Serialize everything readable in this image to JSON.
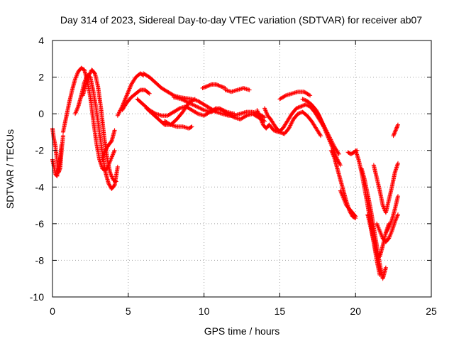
{
  "chart_data": {
    "type": "scatter",
    "title": "Day 314 of 2023, Sidereal Day-to-day VTEC variation (SDTVAR) for receiver ab07",
    "xlabel": "GPS time / hours",
    "ylabel": "SDTVAR / TECUs",
    "xlim": [
      0,
      25
    ],
    "ylim": [
      -10,
      4
    ],
    "xticks": [
      0,
      5,
      10,
      15,
      20,
      25
    ],
    "yticks": [
      -10,
      -8,
      -6,
      -4,
      -2,
      0,
      2,
      4
    ],
    "grid": true,
    "marker": "+",
    "series": [
      {
        "name": "SDTVAR",
        "color": "#ff0000",
        "segments": [
          {
            "x": [
              0.0,
              0.1,
              0.2,
              0.3,
              0.4,
              0.5,
              0.6,
              0.7
            ],
            "y": [
              -0.8,
              -1.4,
              -1.8,
              -2.6,
              -3.2,
              -3.0,
              -2.0,
              -1.2
            ]
          },
          {
            "x": [
              0.0,
              0.1,
              0.2,
              0.3,
              0.4,
              0.5,
              0.6
            ],
            "y": [
              -2.5,
              -2.9,
              -3.3,
              -3.4,
              -3.0,
              -2.5,
              -1.7
            ]
          },
          {
            "x": [
              0.7,
              0.9,
              1.1,
              1.3,
              1.5,
              1.7,
              1.9,
              2.1,
              2.3,
              2.5,
              2.7,
              2.9,
              3.1,
              3.3,
              3.5,
              3.7,
              3.9,
              4.1
            ],
            "y": [
              -1.0,
              -0.2,
              0.6,
              1.3,
              1.9,
              2.3,
              2.5,
              2.4,
              1.8,
              0.9,
              -0.4,
              -1.6,
              -2.5,
              -3.0,
              -3.1,
              -2.8,
              -2.4,
              -2.0
            ]
          },
          {
            "x": [
              1.5,
              1.7,
              1.9,
              2.1,
              2.3,
              2.5,
              2.7,
              2.9,
              3.1,
              3.3,
              3.5,
              3.7,
              3.9,
              4.1,
              4.3
            ],
            "y": [
              0.0,
              0.4,
              1.0,
              1.7,
              2.1,
              2.0,
              1.2,
              0.2,
              -1.0,
              -2.2,
              -3.2,
              -3.8,
              -4.1,
              -3.9,
              -2.9
            ]
          },
          {
            "x": [
              2.0,
              2.2,
              2.4,
              2.6,
              2.8,
              3.0,
              3.2,
              3.4,
              3.6,
              3.8,
              4.0,
              4.2
            ],
            "y": [
              1.0,
              1.6,
              2.1,
              2.4,
              2.2,
              1.5,
              0.3,
              -1.2,
              -2.4,
              -3.2,
              -3.6,
              -3.7
            ]
          },
          {
            "x": [
              3.3,
              3.5,
              3.7,
              3.9,
              4.1
            ],
            "y": [
              -2.5,
              -2.0,
              -1.7,
              -1.5,
              -0.9
            ]
          },
          {
            "x": [
              4.3,
              4.6,
              4.9,
              5.2,
              5.5,
              5.8,
              6.0
            ],
            "y": [
              -0.1,
              0.4,
              1.0,
              1.6,
              2.0,
              2.2,
              2.1
            ]
          },
          {
            "x": [
              4.6,
              4.9,
              5.2,
              5.5,
              5.8,
              6.1,
              6.4
            ],
            "y": [
              0.2,
              0.6,
              0.9,
              1.1,
              1.3,
              1.3,
              1.1
            ]
          },
          {
            "x": [
              6.0,
              6.4,
              6.8,
              7.2,
              7.6,
              8.0,
              8.4,
              8.8,
              9.2,
              9.6,
              10.0,
              10.4,
              10.8,
              11.2,
              11.6,
              12.0,
              12.4,
              12.8,
              13.2,
              13.6,
              14.0
            ],
            "y": [
              2.2,
              2.0,
              1.7,
              1.4,
              1.2,
              1.0,
              0.9,
              0.85,
              0.8,
              0.7,
              0.5,
              0.3,
              0.1,
              0.0,
              -0.1,
              -0.1,
              0.0,
              0.1,
              0.1,
              0.0,
              -0.2
            ]
          },
          {
            "x": [
              5.6,
              6.0,
              6.4,
              6.8,
              7.2,
              7.6,
              8.0,
              8.4,
              8.8,
              9.2,
              9.6,
              10.0,
              10.4,
              10.8,
              11.2,
              11.6,
              12.0,
              12.4,
              12.8,
              13.2,
              13.6,
              14.0
            ],
            "y": [
              0.8,
              0.5,
              0.2,
              0.0,
              -0.1,
              -0.1,
              0.1,
              0.3,
              0.4,
              0.2,
              0.0,
              -0.1,
              0.1,
              0.3,
              0.2,
              0.0,
              -0.2,
              -0.3,
              -0.1,
              0.0,
              -0.2,
              -0.4
            ]
          },
          {
            "x": [
              6.2,
              6.6,
              7.0,
              7.4,
              7.8,
              8.2,
              8.6,
              9.0,
              9.4
            ],
            "y": [
              0.3,
              0.0,
              -0.3,
              -0.6,
              -0.6,
              -0.3,
              0.1,
              0.6,
              0.8
            ]
          },
          {
            "x": [
              7.4,
              7.8,
              8.2,
              8.6,
              9.0,
              9.2
            ],
            "y": [
              -0.4,
              -0.6,
              -0.7,
              -0.7,
              -0.8,
              -0.7
            ]
          },
          {
            "x": [
              8.0,
              8.5,
              9.0,
              9.5,
              10.0,
              10.5,
              11.0,
              11.5,
              12.0
            ],
            "y": [
              0.9,
              0.8,
              0.6,
              0.4,
              0.2,
              0.1,
              0.3,
              0.1,
              0.0
            ]
          },
          {
            "x": [
              9.9,
              10.2,
              10.5,
              10.8,
              11.1,
              11.4
            ],
            "y": [
              1.4,
              1.5,
              1.6,
              1.6,
              1.5,
              1.4
            ]
          },
          {
            "x": [
              11.4,
              11.8,
              12.2,
              12.6,
              13.0
            ],
            "y": [
              1.3,
              1.2,
              1.3,
              1.4,
              1.3
            ]
          },
          {
            "x": [
              13.5,
              13.7,
              13.9,
              14.1,
              14.3
            ],
            "y": [
              0.2,
              -0.2,
              -0.6,
              -0.8,
              -0.6
            ]
          },
          {
            "x": [
              14.0,
              14.2,
              14.4
            ],
            "y": [
              0.3,
              -0.1,
              -0.3
            ]
          },
          {
            "x": [
              14.3,
              14.6,
              14.9,
              15.2,
              15.5,
              15.8,
              16.1,
              16.4,
              16.7,
              17.0,
              17.3,
              17.6,
              17.9
            ],
            "y": [
              -0.6,
              -0.9,
              -1.0,
              -0.8,
              -0.4,
              0.0,
              0.3,
              0.4,
              0.5,
              0.4,
              0.1,
              -0.3,
              -0.7
            ]
          },
          {
            "x": [
              14.4,
              14.7,
              15.0,
              15.3,
              15.6,
              15.9,
              16.2,
              16.5,
              16.8,
              17.1,
              17.4,
              17.7
            ],
            "y": [
              -0.3,
              -0.7,
              -1.0,
              -1.1,
              -0.8,
              -0.3,
              0.0,
              0.1,
              -0.1,
              -0.4,
              -0.8,
              -1.2
            ]
          },
          {
            "x": [
              15.0,
              15.4,
              15.8,
              16.2,
              16.6,
              17.0
            ],
            "y": [
              0.8,
              1.0,
              1.1,
              1.2,
              1.2,
              1.0
            ]
          },
          {
            "x": [
              16.5,
              16.8,
              17.1,
              17.4,
              17.7,
              18.0,
              18.3,
              18.6,
              18.9
            ],
            "y": [
              0.8,
              0.7,
              0.5,
              0.2,
              -0.3,
              -0.8,
              -1.3,
              -1.8,
              -2.2
            ]
          },
          {
            "x": [
              17.4,
              17.6,
              17.8,
              18.0,
              18.2,
              18.4,
              18.6,
              18.8,
              19.0
            ],
            "y": [
              0.2,
              -0.1,
              -0.5,
              -0.9,
              -1.3,
              -1.7,
              -2.1,
              -2.5,
              -2.8
            ]
          },
          {
            "x": [
              18.4,
              18.6,
              18.8,
              19.0,
              19.2,
              19.4,
              19.6,
              19.8,
              20.0
            ],
            "y": [
              -2.0,
              -2.4,
              -3.0,
              -3.6,
              -4.2,
              -4.8,
              -5.3,
              -5.6,
              -5.7
            ]
          },
          {
            "x": [
              19.0,
              19.2,
              19.4,
              19.6,
              19.8,
              20.0
            ],
            "y": [
              -4.2,
              -4.6,
              -5.0,
              -5.2,
              -5.4,
              -5.6
            ]
          },
          {
            "x": [
              19.5,
              19.7,
              19.9,
              20.1
            ],
            "y": [
              -2.1,
              -2.2,
              -2.1,
              -2.0
            ]
          },
          {
            "x": [
              20.0,
              20.2,
              20.4,
              20.6,
              20.8,
              21.0,
              21.2,
              21.4,
              21.6
            ],
            "y": [
              -2.0,
              -2.5,
              -3.2,
              -4.1,
              -5.0,
              -6.0,
              -7.0,
              -8.0,
              -8.8
            ]
          },
          {
            "x": [
              20.4,
              20.6,
              20.8,
              21.0,
              21.2,
              21.4,
              21.6,
              21.8,
              22.0
            ],
            "y": [
              -3.0,
              -3.6,
              -4.4,
              -5.2,
              -6.2,
              -7.2,
              -8.2,
              -9.0,
              -8.4
            ]
          },
          {
            "x": [
              20.8,
              21.0,
              21.2,
              21.4,
              21.6,
              21.8,
              22.0,
              22.2
            ],
            "y": [
              -5.5,
              -6.2,
              -7.0,
              -7.7,
              -7.8,
              -7.2,
              -6.5,
              -6.0
            ]
          },
          {
            "x": [
              21.2,
              21.4,
              21.6,
              21.8,
              22.0,
              22.2,
              22.4,
              22.6,
              22.8
            ],
            "y": [
              -2.8,
              -3.5,
              -4.2,
              -5.0,
              -5.4,
              -4.7,
              -4.0,
              -3.2,
              -2.7
            ]
          },
          {
            "x": [
              21.4,
              21.6,
              21.8,
              22.0,
              22.2,
              22.4,
              22.6,
              22.8
            ],
            "y": [
              -6.0,
              -6.4,
              -6.8,
              -7.0,
              -6.8,
              -6.4,
              -5.9,
              -5.5
            ]
          },
          {
            "x": [
              22.0,
              22.2,
              22.4,
              22.6,
              22.8
            ],
            "y": [
              -6.5,
              -6.2,
              -5.8,
              -5.2,
              -4.5
            ]
          },
          {
            "x": [
              22.5,
              22.6,
              22.7,
              22.8
            ],
            "y": [
              -1.2,
              -1.0,
              -0.8,
              -0.6
            ]
          }
        ]
      }
    ]
  }
}
